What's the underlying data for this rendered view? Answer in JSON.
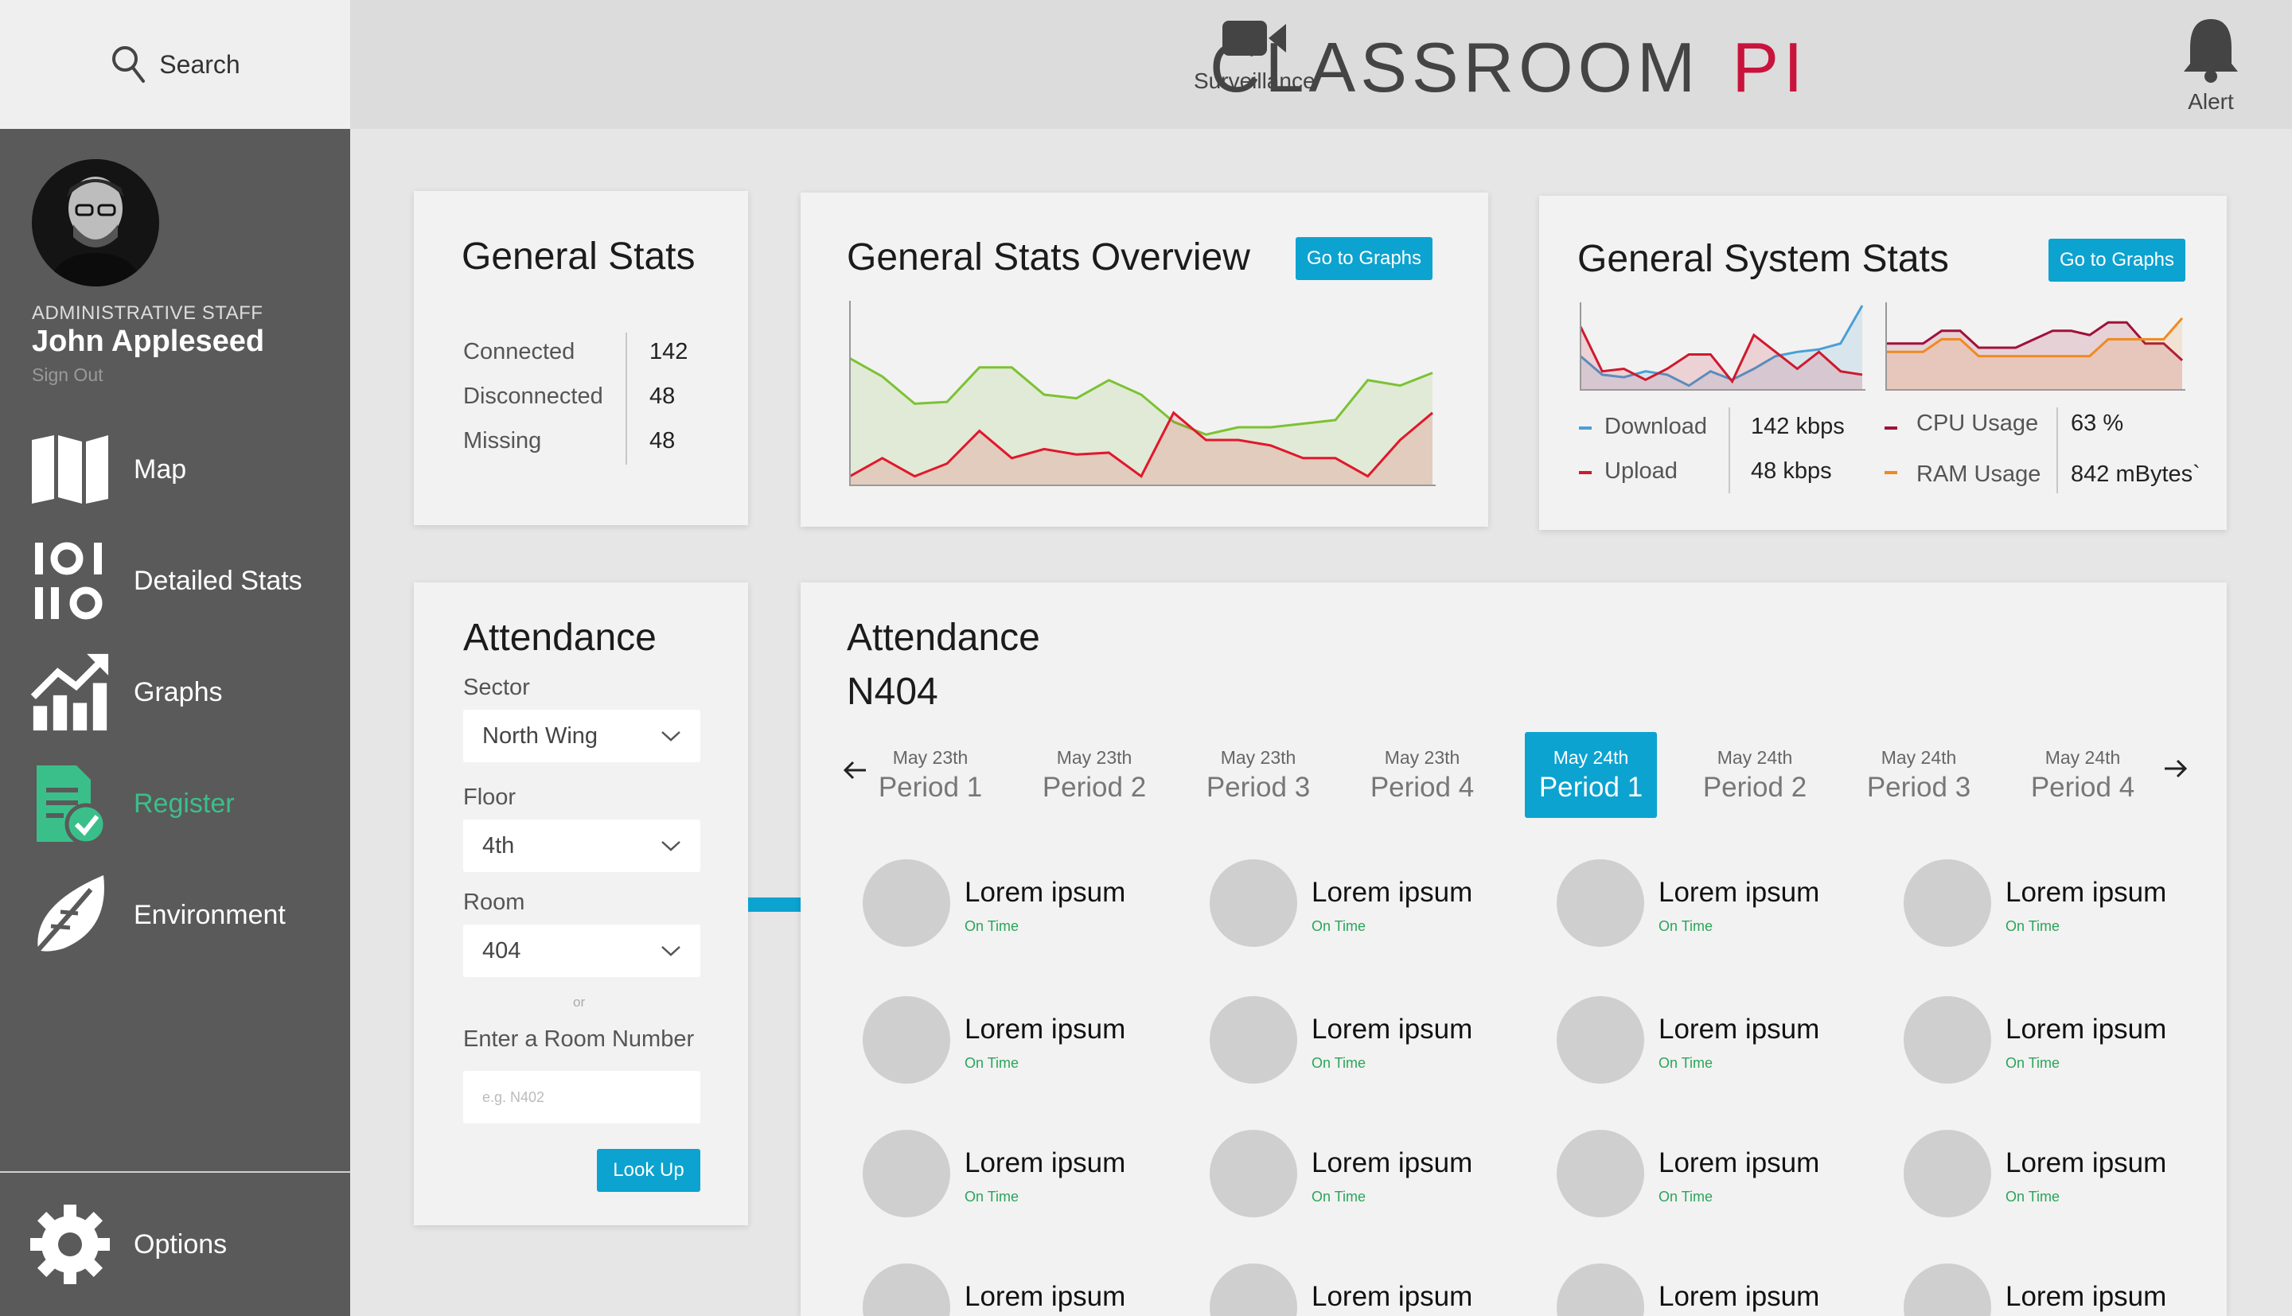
{
  "sidebar": {
    "search_label": "Search",
    "role": "ADMINISTRATIVE STAFF",
    "user_name": "John Appleseed",
    "sign_out": "Sign Out",
    "items": [
      {
        "label": "Map",
        "icon": "map-icon"
      },
      {
        "label": "Detailed Stats",
        "icon": "detailed-stats-icon"
      },
      {
        "label": "Graphs",
        "icon": "graphs-icon"
      },
      {
        "label": "Register",
        "icon": "register-icon",
        "active": true
      },
      {
        "label": "Environment",
        "icon": "leaf-icon"
      }
    ],
    "options_label": "Options",
    "active_color": "#3bbf8a"
  },
  "header": {
    "logo_main": "CLASSROOM",
    "logo_accent": "PI",
    "logo_accent_color": "#c8143c",
    "surveillance_label": "Surveillance",
    "alert_label": "Alert"
  },
  "general_stats": {
    "title": "General Stats",
    "rows": [
      {
        "label": "Connected",
        "value": "142"
      },
      {
        "label": "Disconnected",
        "value": "48"
      },
      {
        "label": "Missing",
        "value": "48"
      }
    ]
  },
  "overview": {
    "title": "General Stats Overview",
    "button": "Go to Graphs",
    "accent_color": "#0ca3d0"
  },
  "system_stats": {
    "title": "General System Stats",
    "button": "Go to Graphs",
    "download_label": "Download",
    "download_value": "142 kbps",
    "upload_label": "Upload",
    "upload_value": "48 kbps",
    "cpu_label": "CPU Usage",
    "cpu_value": "63 %",
    "ram_label": "RAM Usage",
    "ram_value": "842 mBytes`"
  },
  "chart_data": [
    {
      "type": "area",
      "series": [
        {
          "color": "#7cc234",
          "values": [
            70,
            60,
            45,
            46,
            65,
            65,
            50,
            48,
            58,
            50,
            35,
            28,
            32,
            32,
            34,
            36,
            58,
            55,
            62
          ]
        },
        {
          "color": "#e0182d",
          "values": [
            5,
            15,
            5,
            12,
            30,
            15,
            20,
            17,
            18,
            5,
            40,
            25,
            25,
            22,
            15,
            15,
            5,
            25,
            40
          ]
        }
      ]
    },
    {
      "type": "area",
      "series": [
        {
          "name": "Download",
          "color": "#4a9fd4",
          "values": [
            40,
            18,
            15,
            22,
            18,
            5,
            22,
            12,
            25,
            40,
            45,
            48,
            55,
            100
          ]
        },
        {
          "name": "Upload",
          "color": "#d0182d",
          "values": [
            75,
            22,
            25,
            12,
            25,
            42,
            42,
            10,
            65,
            45,
            25,
            45,
            22,
            18
          ]
        }
      ]
    },
    {
      "type": "area",
      "series": [
        {
          "name": "CPU Usage",
          "color": "#a0113a",
          "values": [
            55,
            55,
            55,
            70,
            70,
            50,
            50,
            50,
            60,
            70,
            70,
            65,
            80,
            80,
            55,
            55,
            35
          ]
        },
        {
          "name": "RAM Usage",
          "color": "#f08a1e",
          "values": [
            45,
            45,
            45,
            60,
            60,
            40,
            40,
            40,
            40,
            40,
            40,
            40,
            60,
            60,
            60,
            60,
            85
          ]
        }
      ]
    }
  ],
  "attendance_form": {
    "title": "Attendance",
    "sector_label": "Sector",
    "sector_value": "North Wing",
    "floor_label": "Floor",
    "floor_value": "4th",
    "room_label": "Room",
    "room_value": "404",
    "or_label": "or",
    "room_number_label": "Enter a Room Number",
    "room_number_placeholder": "e.g. N402",
    "lookup_button": "Look Up"
  },
  "attendance_panel": {
    "title": "Attendance",
    "room": "N404",
    "periods": [
      {
        "date": "May 23th",
        "name": "Period 1"
      },
      {
        "date": "May 23th",
        "name": "Period 2"
      },
      {
        "date": "May 23th",
        "name": "Period 3"
      },
      {
        "date": "May 23th",
        "name": "Period 4"
      },
      {
        "date": "May 24th",
        "name": "Period 1",
        "active": true
      },
      {
        "date": "May 24th",
        "name": "Period 2"
      },
      {
        "date": "May 24th",
        "name": "Period 3"
      },
      {
        "date": "May 24th",
        "name": "Period 4"
      }
    ],
    "student_name": "Lorem ipsum",
    "student_status": "On Time",
    "status_color": "#2aa55a"
  }
}
